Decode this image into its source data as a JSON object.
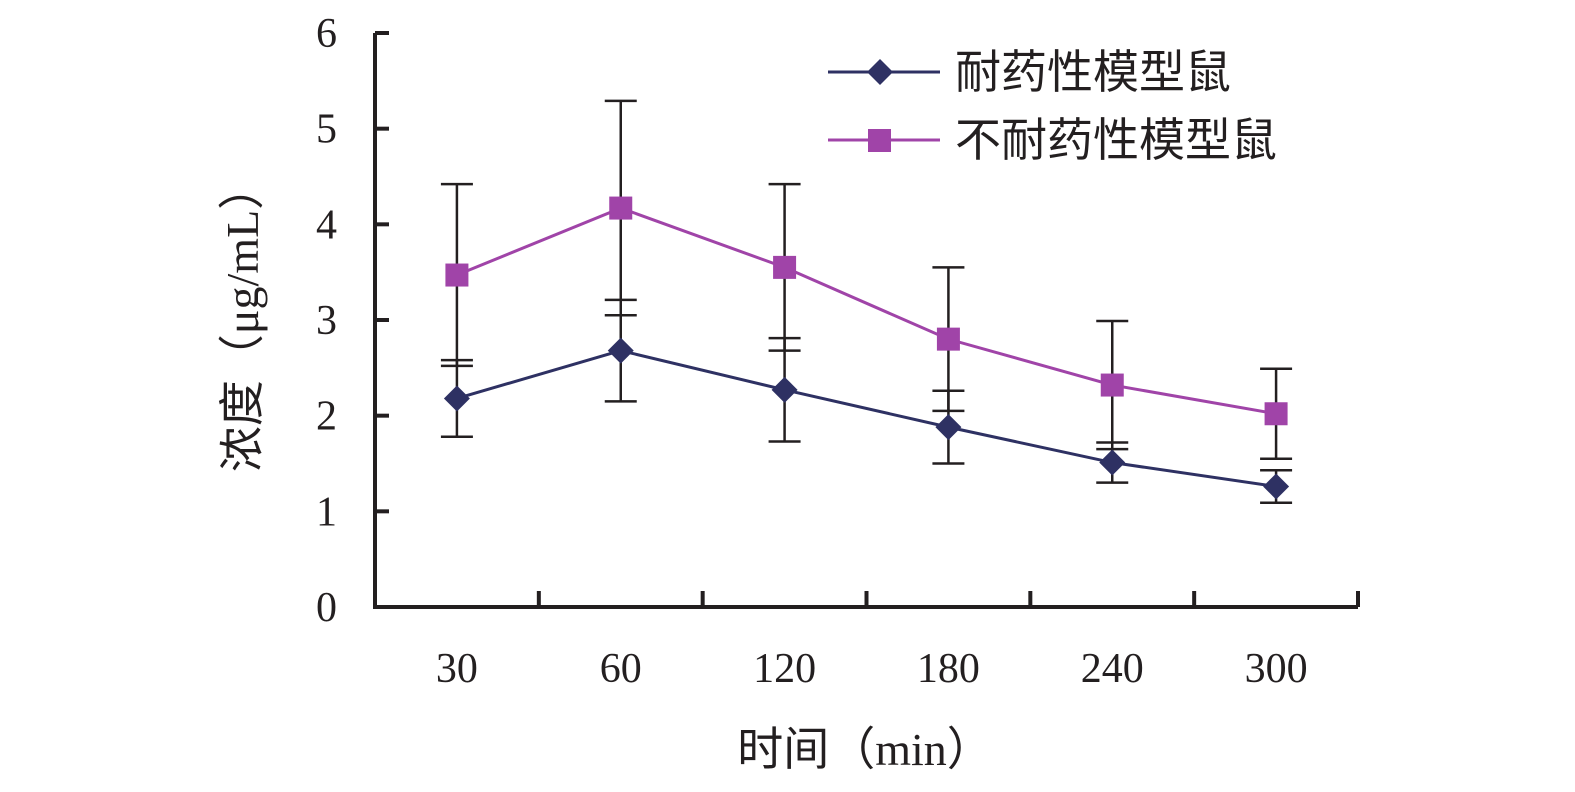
{
  "chart_data": {
    "type": "line",
    "categories": [
      "30",
      "60",
      "120",
      "180",
      "240",
      "300"
    ],
    "xlabel": "时间（min）",
    "ylabel": "浓度（μg/mL）",
    "ylim": [
      0,
      6
    ],
    "yticks": [
      "0",
      "1",
      "2",
      "3",
      "4",
      "5",
      "6"
    ],
    "grid": false,
    "legend_position": "top-right",
    "series": [
      {
        "name": "耐药性模型鼠",
        "marker": "diamond",
        "color": "#2e3163",
        "values": [
          2.18,
          2.68,
          2.27,
          1.88,
          1.51,
          1.26
        ],
        "error": [
          0.4,
          0.53,
          0.54,
          0.38,
          0.21,
          0.17
        ]
      },
      {
        "name": "不耐药性模型鼠",
        "marker": "square",
        "color": "#a044a8",
        "values": [
          3.47,
          4.17,
          3.55,
          2.8,
          2.32,
          2.02
        ],
        "error": [
          0.95,
          1.12,
          0.87,
          0.75,
          0.67,
          0.47
        ]
      }
    ]
  }
}
